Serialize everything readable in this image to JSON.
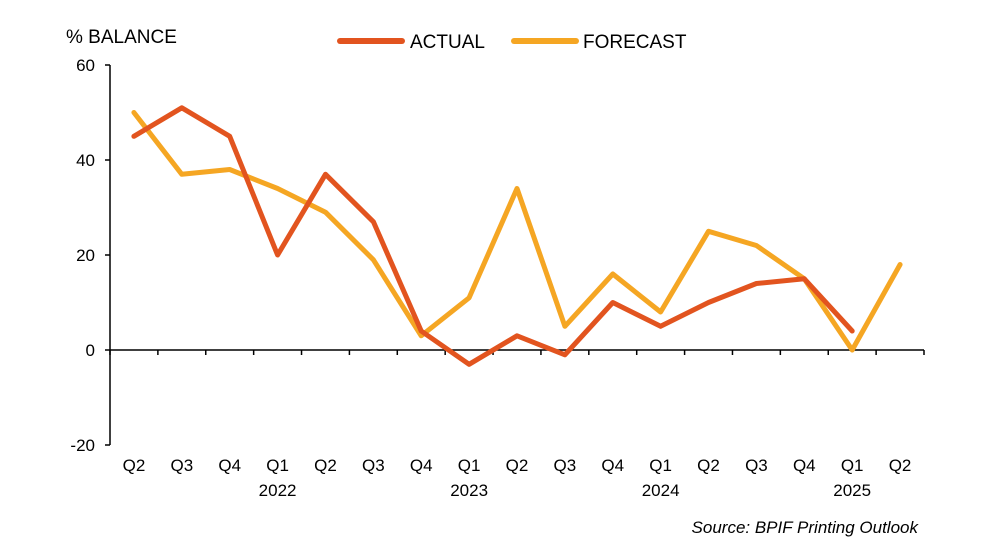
{
  "chart_data": {
    "type": "line",
    "ylabel": "% BALANCE",
    "ylim": [
      -20,
      60
    ],
    "yticks": [
      -20,
      0,
      20,
      40,
      60
    ],
    "categories": [
      "Q2",
      "Q3",
      "Q4",
      "Q1",
      "Q2",
      "Q3",
      "Q4",
      "Q1",
      "Q2",
      "Q3",
      "Q4",
      "Q1",
      "Q2",
      "Q3",
      "Q4",
      "Q1",
      "Q2"
    ],
    "years": [
      {
        "label": "2022",
        "index": 3
      },
      {
        "label": "2023",
        "index": 7
      },
      {
        "label": "2024",
        "index": 11
      },
      {
        "label": "2025",
        "index": 15
      }
    ],
    "series": [
      {
        "name": "ACTUAL",
        "color": "#e2541f",
        "values": [
          45,
          51,
          45,
          20,
          37,
          27,
          4,
          -3,
          3,
          -1,
          10,
          5,
          10,
          14,
          15,
          4,
          null
        ]
      },
      {
        "name": "FORECAST",
        "color": "#f5a623",
        "values": [
          50,
          37,
          38,
          34,
          29,
          19,
          3,
          11,
          34,
          5,
          16,
          8,
          25,
          22,
          15,
          0,
          18
        ]
      }
    ],
    "legend_position": "top",
    "grid": false,
    "source": "Source: BPIF Printing Outlook"
  }
}
